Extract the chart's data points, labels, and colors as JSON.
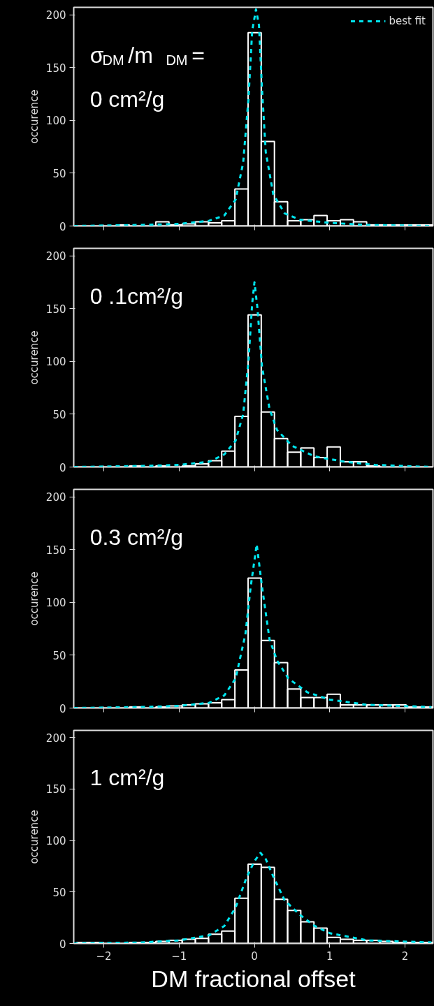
{
  "chart_data": [
    {
      "type": "histogram",
      "ylabel": "occurence",
      "annotations": [
        "σ$_{DM}$/m $_{DM}$ =",
        "0 cm²/g"
      ],
      "xlim": [
        -2.4,
        2.37
      ],
      "ylim": [
        0,
        207
      ],
      "xticks": [
        -2,
        -1,
        0,
        1,
        2
      ],
      "yticks": [
        0,
        50,
        100,
        150,
        200
      ],
      "tick_labels": "y",
      "grid": false,
      "legend": "top right",
      "bins": [
        -2.36,
        -2.185,
        -2.01,
        -1.835,
        -1.66,
        -1.485,
        -1.31,
        -1.135,
        -0.96,
        -0.785,
        -0.61,
        -0.435,
        -0.26,
        -0.085,
        0.09,
        0.265,
        0.44,
        0.615,
        0.79,
        0.965,
        1.14,
        1.315,
        1.49,
        1.665,
        1.84,
        2.015,
        2.19,
        2.365
      ],
      "series": [
        {
          "color": "#ffffff",
          "values": [
            0,
            0,
            0,
            1,
            0,
            0,
            4,
            1,
            2,
            4,
            3,
            5,
            35,
            183,
            80,
            23,
            5,
            6,
            10,
            5,
            6,
            4,
            1,
            1,
            1,
            1,
            1
          ]
        },
        {
          "type": "line",
          "name": "best fit",
          "color": "#00e5ee",
          "line_style": "dashed",
          "x": [
            -2.4,
            -1.5,
            -1,
            -0.6,
            -0.4,
            -0.25,
            -0.15,
            -0.08,
            -0.03,
            0.02,
            0.06,
            0.1,
            0.15,
            0.25,
            0.4,
            0.6,
            1,
            1.5,
            2.35
          ],
          "values": [
            0,
            1,
            2,
            5,
            10,
            25,
            60,
            120,
            185,
            205,
            190,
            130,
            70,
            30,
            12,
            6,
            3,
            1,
            0
          ]
        }
      ]
    },
    {
      "type": "histogram",
      "ylabel": "occurence",
      "annotations": [
        "0 .1cm²/g"
      ],
      "xlim": [
        -2.4,
        2.37
      ],
      "ylim": [
        0,
        207
      ],
      "xticks": [
        -2,
        -1,
        0,
        1,
        2
      ],
      "yticks": [
        0,
        50,
        100,
        150,
        200
      ],
      "tick_labels": "y",
      "grid": false,
      "bins": [
        -2.36,
        -2.185,
        -2.01,
        -1.835,
        -1.66,
        -1.485,
        -1.31,
        -1.135,
        -0.96,
        -0.785,
        -0.61,
        -0.435,
        -0.26,
        -0.085,
        0.09,
        0.265,
        0.44,
        0.615,
        0.79,
        0.965,
        1.14,
        1.315,
        1.49,
        1.665,
        1.84,
        2.015,
        2.19,
        2.365
      ],
      "series": [
        {
          "color": "#ffffff",
          "values": [
            0,
            0,
            0,
            0,
            1,
            0,
            1,
            0,
            1,
            3,
            6,
            15,
            48,
            144,
            52,
            27,
            14,
            18,
            9,
            19,
            5,
            5,
            1,
            0,
            0,
            0,
            0
          ]
        },
        {
          "type": "line",
          "color": "#00e5ee",
          "line_style": "dashed",
          "x": [
            -2.4,
            -1.5,
            -1,
            -0.6,
            -0.4,
            -0.25,
            -0.15,
            -0.08,
            -0.03,
            0,
            0.04,
            0.1,
            0.2,
            0.3,
            0.5,
            0.8,
            1.2,
            1.6,
            2.35
          ],
          "values": [
            0,
            1,
            2,
            5,
            12,
            25,
            50,
            100,
            155,
            175,
            150,
            95,
            55,
            35,
            20,
            10,
            5,
            2,
            0
          ]
        }
      ]
    },
    {
      "type": "histogram",
      "ylabel": "occurence",
      "annotations": [
        "0.3 cm²/g"
      ],
      "xlim": [
        -2.4,
        2.37
      ],
      "ylim": [
        0,
        207
      ],
      "xticks": [
        -2,
        -1,
        0,
        1,
        2
      ],
      "yticks": [
        0,
        50,
        100,
        150,
        200
      ],
      "tick_labels": "y",
      "grid": false,
      "bins": [
        -2.36,
        -2.185,
        -2.01,
        -1.835,
        -1.66,
        -1.485,
        -1.31,
        -1.135,
        -0.96,
        -0.785,
        -0.61,
        -0.435,
        -0.26,
        -0.085,
        0.09,
        0.265,
        0.44,
        0.615,
        0.79,
        0.965,
        1.14,
        1.315,
        1.49,
        1.665,
        1.84,
        2.015,
        2.19,
        2.365
      ],
      "series": [
        {
          "color": "#ffffff",
          "values": [
            0,
            0,
            0,
            0,
            1,
            0,
            1,
            2,
            3,
            4,
            5,
            8,
            36,
            123,
            64,
            43,
            18,
            10,
            10,
            13,
            3,
            3,
            3,
            3,
            3,
            1,
            1
          ]
        },
        {
          "type": "line",
          "color": "#00e5ee",
          "line_style": "dashed",
          "x": [
            -2.4,
            -1.5,
            -1,
            -0.6,
            -0.4,
            -0.25,
            -0.12,
            -0.05,
            0.03,
            0.1,
            0.2,
            0.3,
            0.45,
            0.7,
            1,
            1.5,
            2.35
          ],
          "values": [
            0,
            1,
            2,
            5,
            12,
            28,
            70,
            115,
            155,
            115,
            65,
            45,
            28,
            15,
            8,
            3,
            1
          ]
        }
      ]
    },
    {
      "type": "histogram",
      "ylabel": "occurence",
      "xlabel": "DM fractional offset",
      "annotations": [
        "1 cm²/g"
      ],
      "xlim": [
        -2.4,
        2.37
      ],
      "ylim": [
        0,
        207
      ],
      "xticks": [
        -2,
        -1,
        0,
        1,
        2
      ],
      "yticks": [
        0,
        50,
        100,
        150,
        200
      ],
      "grid": false,
      "bins": [
        -2.36,
        -2.185,
        -2.01,
        -1.835,
        -1.66,
        -1.485,
        -1.31,
        -1.135,
        -0.96,
        -0.785,
        -0.61,
        -0.435,
        -0.26,
        -0.085,
        0.09,
        0.265,
        0.44,
        0.615,
        0.79,
        0.965,
        1.14,
        1.315,
        1.49,
        1.665,
        1.84,
        2.015,
        2.19,
        2.365
      ],
      "series": [
        {
          "color": "#ffffff",
          "values": [
            1,
            1,
            0,
            0,
            1,
            1,
            2,
            3,
            4,
            5,
            9,
            12,
            44,
            77,
            74,
            43,
            32,
            21,
            15,
            6,
            4,
            3,
            3,
            2,
            1,
            1,
            1
          ]
        },
        {
          "type": "line",
          "color": "#00e5ee",
          "line_style": "dashed",
          "x": [
            -2.4,
            -1.5,
            -1,
            -0.6,
            -0.4,
            -0.25,
            -0.1,
            0,
            0.08,
            0.15,
            0.25,
            0.4,
            0.6,
            0.8,
            1,
            1.5,
            2.35
          ],
          "values": [
            0,
            1,
            3,
            8,
            17,
            35,
            65,
            80,
            88,
            82,
            65,
            42,
            28,
            17,
            10,
            3,
            1
          ]
        }
      ]
    }
  ]
}
